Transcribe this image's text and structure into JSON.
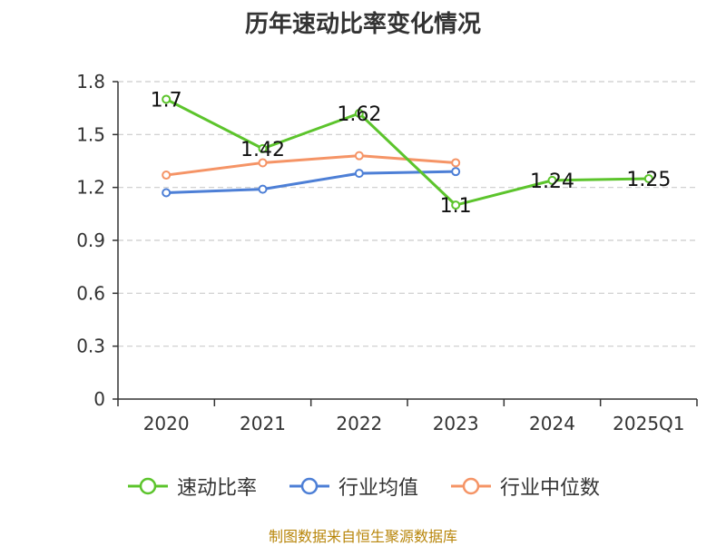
{
  "title": "历年速动比率变化情况",
  "source_note": "制图数据来自恒生聚源数据库",
  "colors": {
    "速动比率": "#5cc42c",
    "行业均值": "#4d7fd6",
    "行业中位数": "#f59466",
    "axis": "#333333",
    "grid": "#cccccc"
  },
  "chart_data": {
    "type": "line",
    "categories": [
      "2020",
      "2021",
      "2022",
      "2023",
      "2024",
      "2025Q1"
    ],
    "ylim": [
      0,
      1.8
    ],
    "yticks": [
      0,
      0.3,
      0.6,
      0.9,
      1.2,
      1.5,
      1.8
    ],
    "grid": true,
    "legend_position": "bottom",
    "series": [
      {
        "name": "速动比率",
        "values": [
          1.7,
          1.42,
          1.62,
          1.1,
          1.24,
          1.25
        ],
        "labels": [
          "1.7",
          "1.42",
          "1.62",
          "1.1",
          "1.24",
          "1.25"
        ]
      },
      {
        "name": "行业均值",
        "values": [
          1.17,
          1.19,
          1.28,
          1.29,
          null,
          null
        ]
      },
      {
        "name": "行业中位数",
        "values": [
          1.27,
          1.34,
          1.38,
          1.34,
          null,
          null
        ]
      }
    ]
  }
}
